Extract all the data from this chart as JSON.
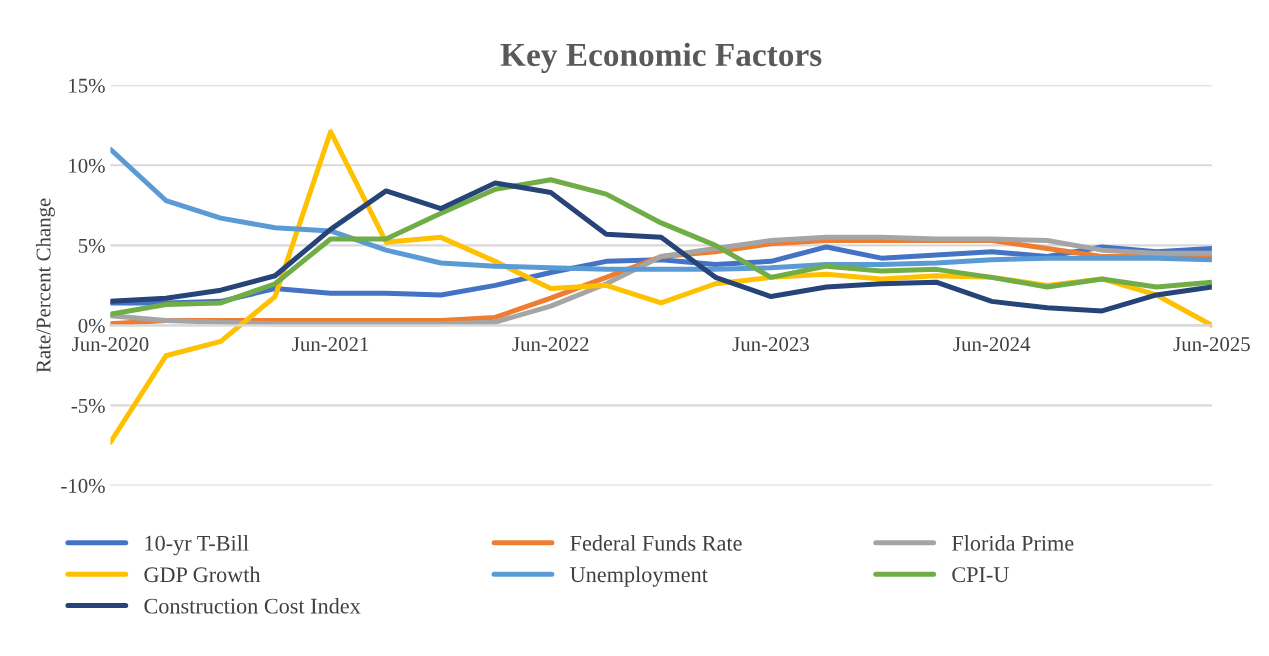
{
  "chart_data": {
    "type": "line",
    "title": "Key Economic Factors",
    "ylabel": "Rate/Percent Change",
    "x": [
      "2020-06",
      "2020-09",
      "2020-12",
      "2021-03",
      "2021-06",
      "2021-09",
      "2021-12",
      "2022-03",
      "2022-06",
      "2022-09",
      "2022-12",
      "2023-03",
      "2023-06",
      "2023-09",
      "2023-12",
      "2024-03",
      "2024-06",
      "2024-09",
      "2024-12",
      "2025-03",
      "2025-06"
    ],
    "series": [
      {
        "name": "10-yr T-Bill",
        "color": "#4472c4",
        "values": [
          1.4,
          1.4,
          1.5,
          2.3,
          2.0,
          2.0,
          1.9,
          2.5,
          3.3,
          4.0,
          4.1,
          3.8,
          4.0,
          4.9,
          4.2,
          4.4,
          4.6,
          4.3,
          4.9,
          4.6,
          4.8
        ]
      },
      {
        "name": "Federal Funds Rate",
        "color": "#ed7d31",
        "values": [
          0.1,
          0.3,
          0.3,
          0.3,
          0.3,
          0.3,
          0.3,
          0.5,
          1.7,
          3.0,
          4.3,
          4.6,
          5.1,
          5.3,
          5.3,
          5.3,
          5.3,
          4.8,
          4.3,
          4.3,
          4.3
        ]
      },
      {
        "name": "Florida Prime",
        "color": "#a5a5a5",
        "values": [
          0.6,
          0.3,
          0.2,
          0.1,
          0.1,
          0.1,
          0.1,
          0.2,
          1.2,
          2.6,
          4.3,
          4.8,
          5.3,
          5.5,
          5.5,
          5.4,
          5.4,
          5.3,
          4.7,
          4.5,
          4.5
        ]
      },
      {
        "name": "GDP Growth",
        "color": "#ffc000",
        "values": [
          -7.3,
          -1.9,
          -1.0,
          1.8,
          12.1,
          5.2,
          5.5,
          4.0,
          2.3,
          2.5,
          1.4,
          2.6,
          3.0,
          3.2,
          2.9,
          3.1,
          3.0,
          2.5,
          2.9,
          1.9,
          0.0
        ]
      },
      {
        "name": "Unemployment",
        "color": "#5b9bd5",
        "values": [
          11.0,
          7.8,
          6.7,
          6.1,
          5.9,
          4.7,
          3.9,
          3.7,
          3.6,
          3.5,
          3.5,
          3.5,
          3.6,
          3.8,
          3.8,
          3.9,
          4.1,
          4.2,
          4.2,
          4.2,
          4.1
        ]
      },
      {
        "name": "CPI-U",
        "color": "#70ad47",
        "values": [
          0.7,
          1.3,
          1.4,
          2.6,
          5.4,
          5.4,
          7.0,
          8.5,
          9.1,
          8.2,
          6.4,
          5.0,
          3.0,
          3.7,
          3.4,
          3.5,
          3.0,
          2.4,
          2.9,
          2.4,
          2.7
        ]
      },
      {
        "name": "Construction Cost Index",
        "color": "#264478",
        "values": [
          1.5,
          1.7,
          2.2,
          3.1,
          6.0,
          8.4,
          7.3,
          8.9,
          8.3,
          5.7,
          5.5,
          3.0,
          1.8,
          2.4,
          2.6,
          2.7,
          1.5,
          1.1,
          0.9,
          1.9,
          2.4
        ]
      }
    ],
    "xlim": [
      "2020-06",
      "2025-06"
    ],
    "xticks": [
      {
        "value": "2020-06",
        "label": "Jun-2020"
      },
      {
        "value": "2021-06",
        "label": "Jun-2021"
      },
      {
        "value": "2022-06",
        "label": "Jun-2022"
      },
      {
        "value": "2023-06",
        "label": "Jun-2023"
      },
      {
        "value": "2024-06",
        "label": "Jun-2024"
      },
      {
        "value": "2025-06",
        "label": "Jun-2025"
      }
    ],
    "ylim": [
      -10,
      15
    ],
    "yticks": [
      {
        "value": -10,
        "label": "-10%"
      },
      {
        "value": -5,
        "label": "-5%"
      },
      {
        "value": 0,
        "label": "0%"
      },
      {
        "value": 5,
        "label": "5%"
      },
      {
        "value": 10,
        "label": "10%"
      },
      {
        "value": 15,
        "label": "15%"
      }
    ],
    "grid": "y",
    "legend": "bottom",
    "marker": "none",
    "line_style": "solid"
  }
}
